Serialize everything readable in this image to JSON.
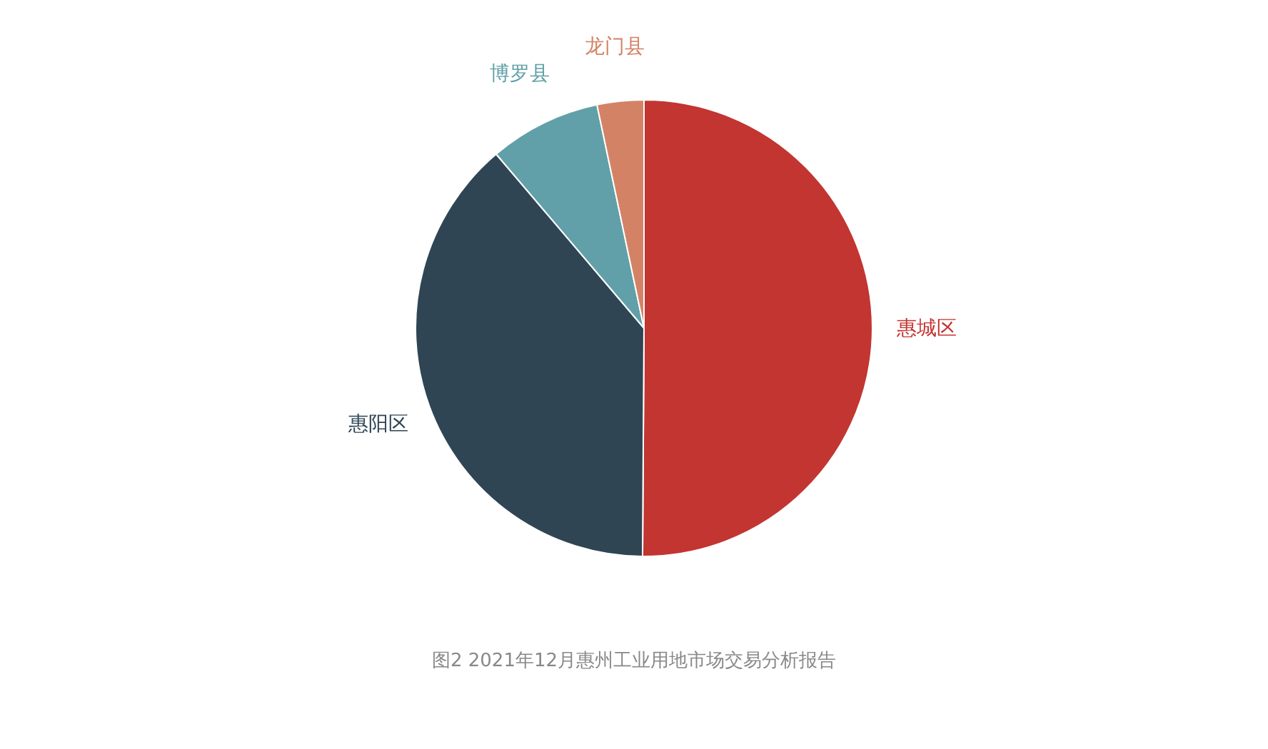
{
  "chart_data": {
    "type": "pie",
    "categories": [
      "惠城区",
      "惠阳区",
      "博罗县",
      "龙门县"
    ],
    "values": [
      50.1,
      38.7,
      7.9,
      3.3
    ],
    "colors": [
      "#c23531",
      "#2f4554",
      "#61a0a8",
      "#d48265"
    ],
    "annotations": [
      "图2 2021年12月惠州工业用地市场交易分析报告"
    ]
  }
}
